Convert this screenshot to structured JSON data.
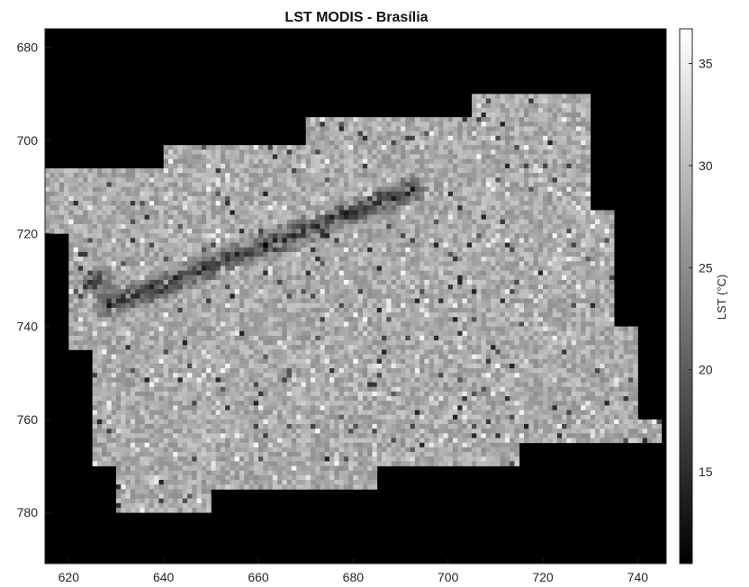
{
  "chart_data": {
    "type": "heatmap",
    "title": "LST MODIS - Brasília",
    "xlabel": "",
    "ylabel": "",
    "colormap": "gray",
    "colorbar": {
      "label": "LST (°C)",
      "range": [
        10.5,
        36.7
      ],
      "ticks": [
        15,
        20,
        25,
        30,
        35
      ]
    },
    "x_range": [
      615,
      746
    ],
    "y_range": [
      676,
      791
    ],
    "y_reversed": true,
    "x_ticks": [
      620,
      640,
      660,
      680,
      700,
      720,
      740
    ],
    "y_ticks": [
      680,
      700,
      720,
      740,
      760,
      780
    ],
    "background_value": "no data (black)",
    "valid_region_row_spans": [
      {
        "y": [
          690,
          695
        ],
        "x": [
          705,
          730
        ]
      },
      {
        "y": [
          695,
          701
        ],
        "x": [
          670,
          730
        ]
      },
      {
        "y": [
          701,
          706
        ],
        "x": [
          640,
          730
        ]
      },
      {
        "y": [
          706,
          715
        ],
        "x": [
          615,
          730
        ]
      },
      {
        "y": [
          715,
          720
        ],
        "x": [
          615,
          735
        ]
      },
      {
        "y": [
          720,
          740
        ],
        "x": [
          620,
          735
        ]
      },
      {
        "y": [
          740,
          745
        ],
        "x": [
          620,
          740
        ]
      },
      {
        "y": [
          745,
          760
        ],
        "x": [
          625,
          740
        ]
      },
      {
        "y": [
          760,
          765
        ],
        "x": [
          625,
          745
        ]
      },
      {
        "y": [
          765,
          770
        ],
        "x": [
          625,
          715
        ]
      },
      {
        "y": [
          770,
          775
        ],
        "x": [
          630,
          685
        ]
      },
      {
        "y": [
          775,
          780
        ],
        "x": [
          630,
          650
        ]
      }
    ],
    "features": [
      {
        "name": "cool ridge band",
        "from": [
          628,
          735
        ],
        "to": [
          692,
          710
        ],
        "lst_approx": 14
      },
      {
        "name": "cool spots",
        "location": [
          626,
          730
        ],
        "lst_approx": 12
      }
    ],
    "typical_lst": 28
  }
}
